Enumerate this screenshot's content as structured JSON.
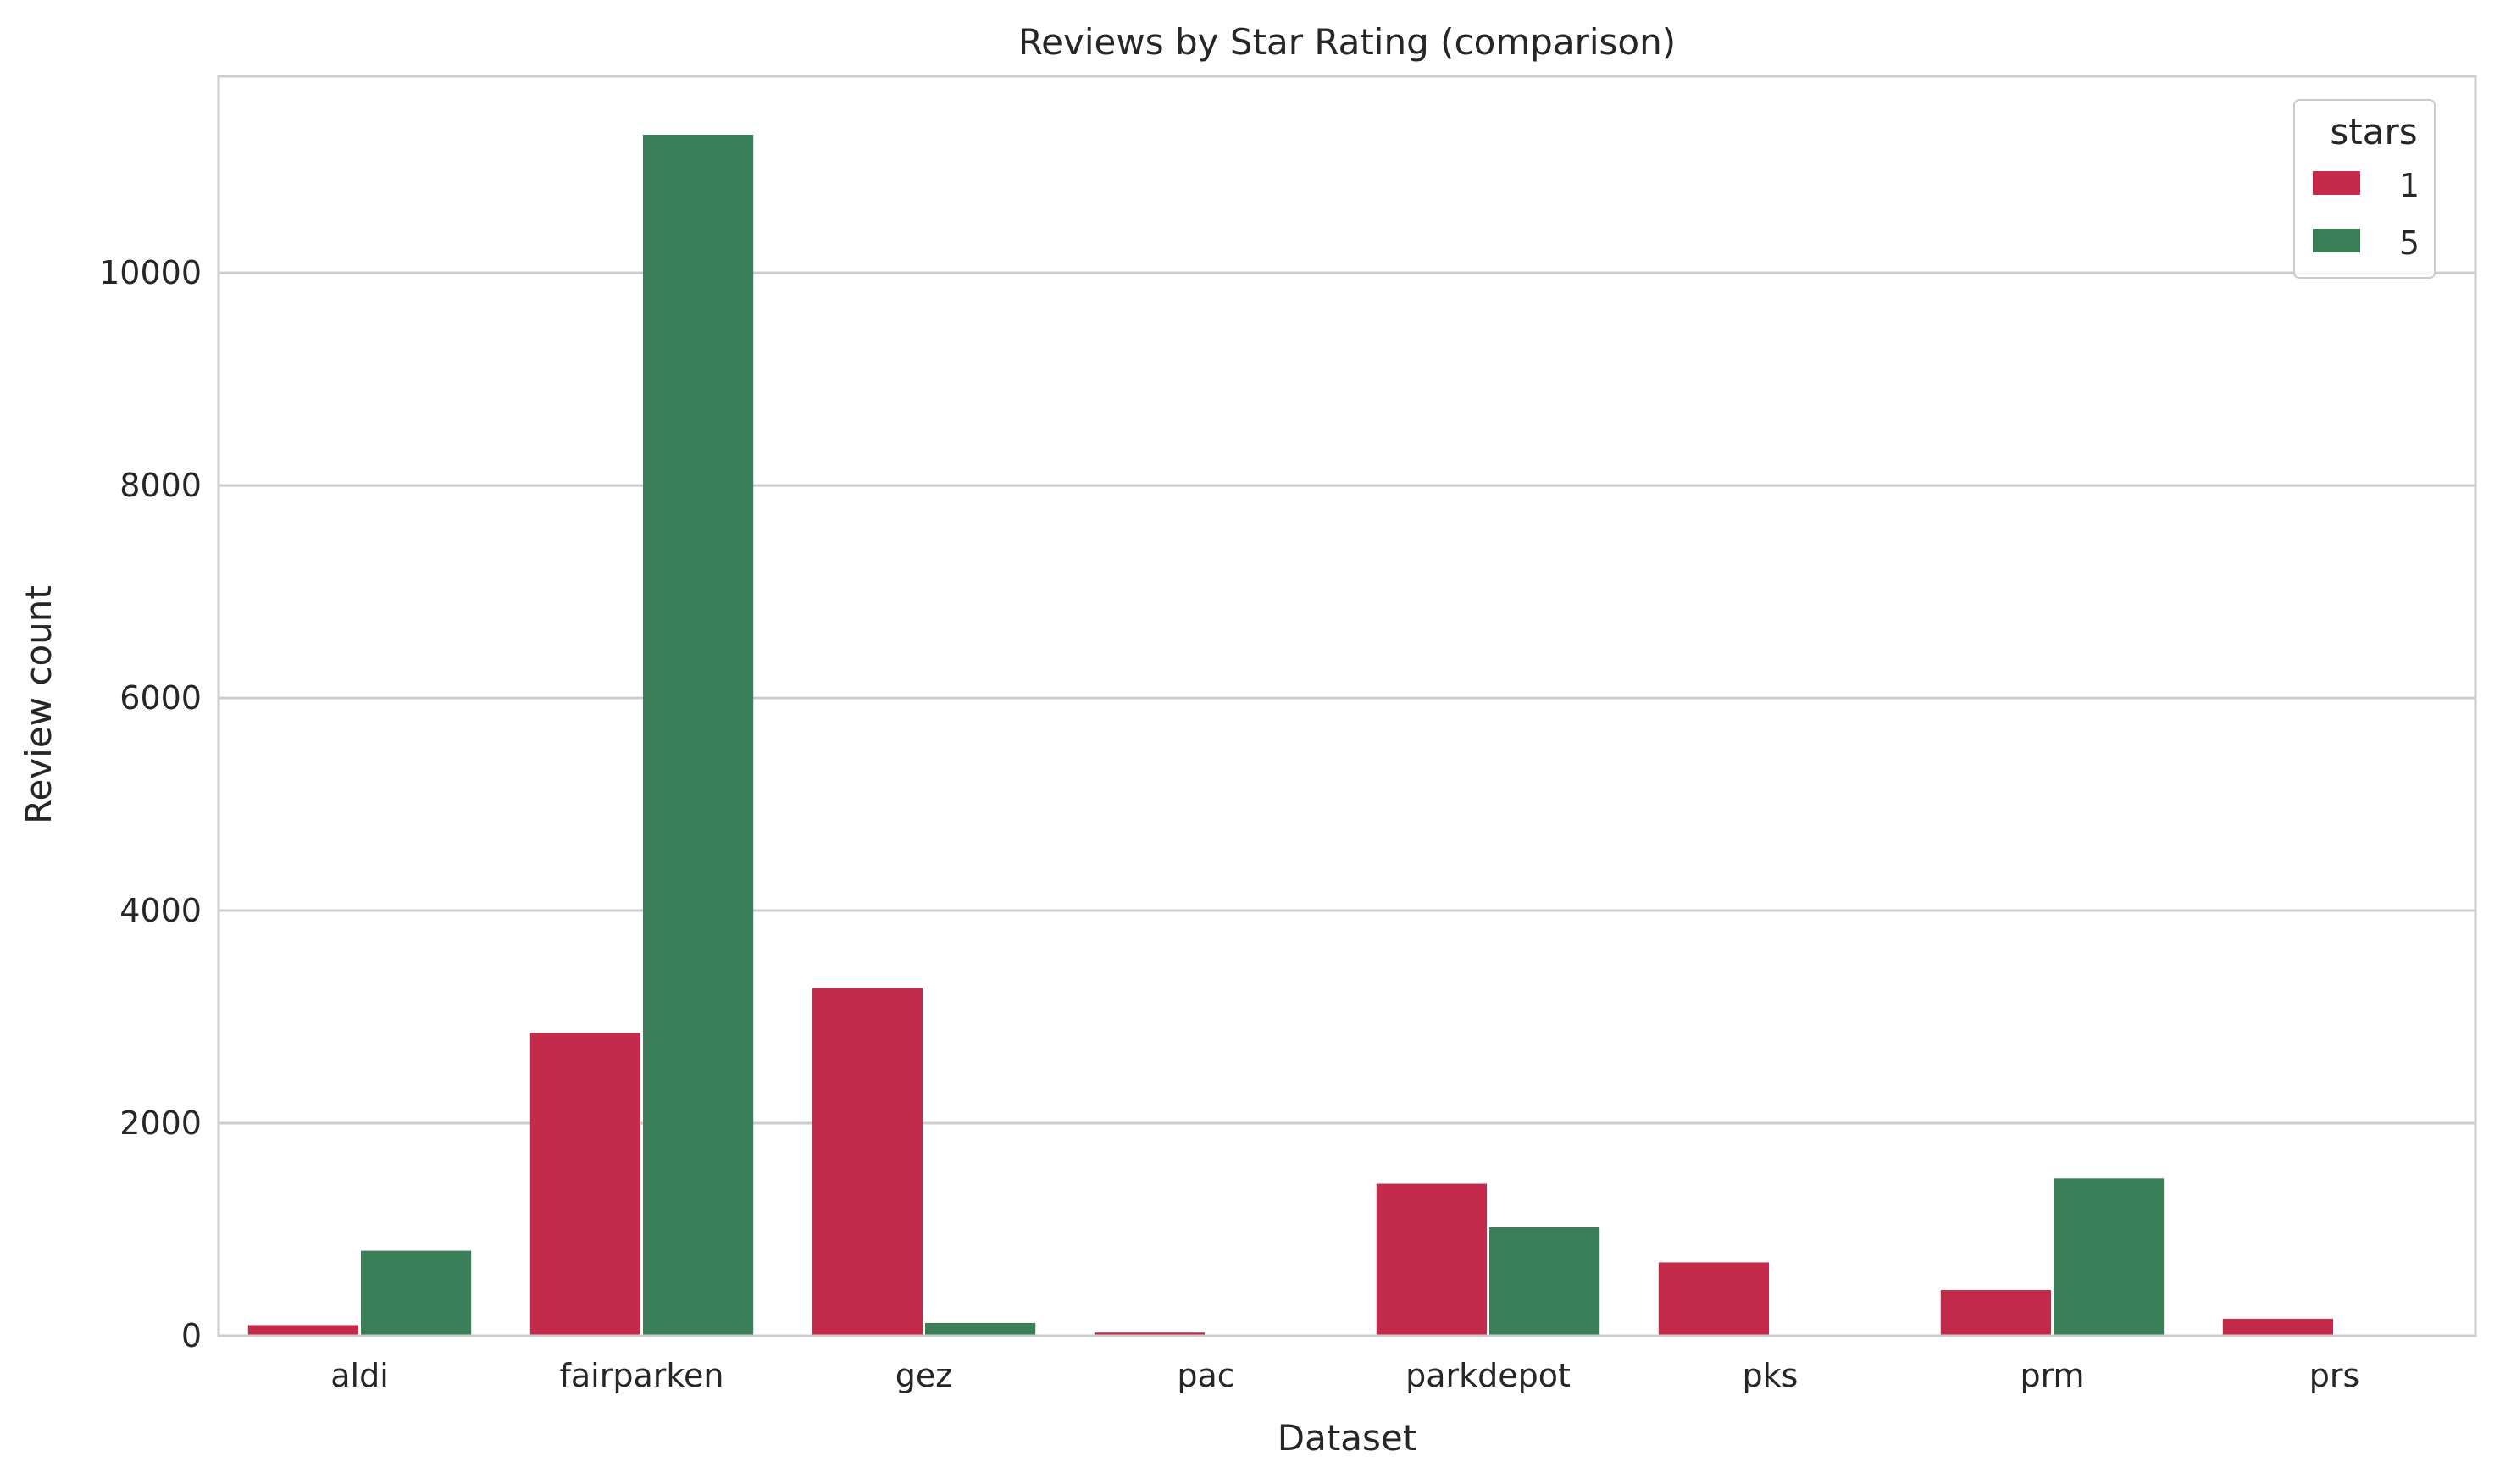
{
  "chart_data": {
    "type": "bar",
    "title": "Reviews by Star Rating (comparison)",
    "xlabel": "Dataset",
    "ylabel": "Review count",
    "categories": [
      "aldi",
      "fairparken",
      "gez",
      "pac",
      "parkdepot",
      "pks",
      "prm",
      "prs"
    ],
    "series": [
      {
        "name": "1",
        "color": "#c42b4b",
        "values": [
          100,
          2850,
          3270,
          30,
          1430,
          690,
          430,
          160
        ]
      },
      {
        "name": "5",
        "color": "#3a7f58",
        "values": [
          800,
          11300,
          120,
          5,
          1020,
          5,
          1480,
          5
        ]
      }
    ],
    "ylim": [
      0,
      11850
    ],
    "yticks": [
      0,
      2000,
      4000,
      6000,
      8000,
      10000
    ],
    "grid": true,
    "legend": {
      "title": "stars",
      "position": "top-right"
    }
  }
}
